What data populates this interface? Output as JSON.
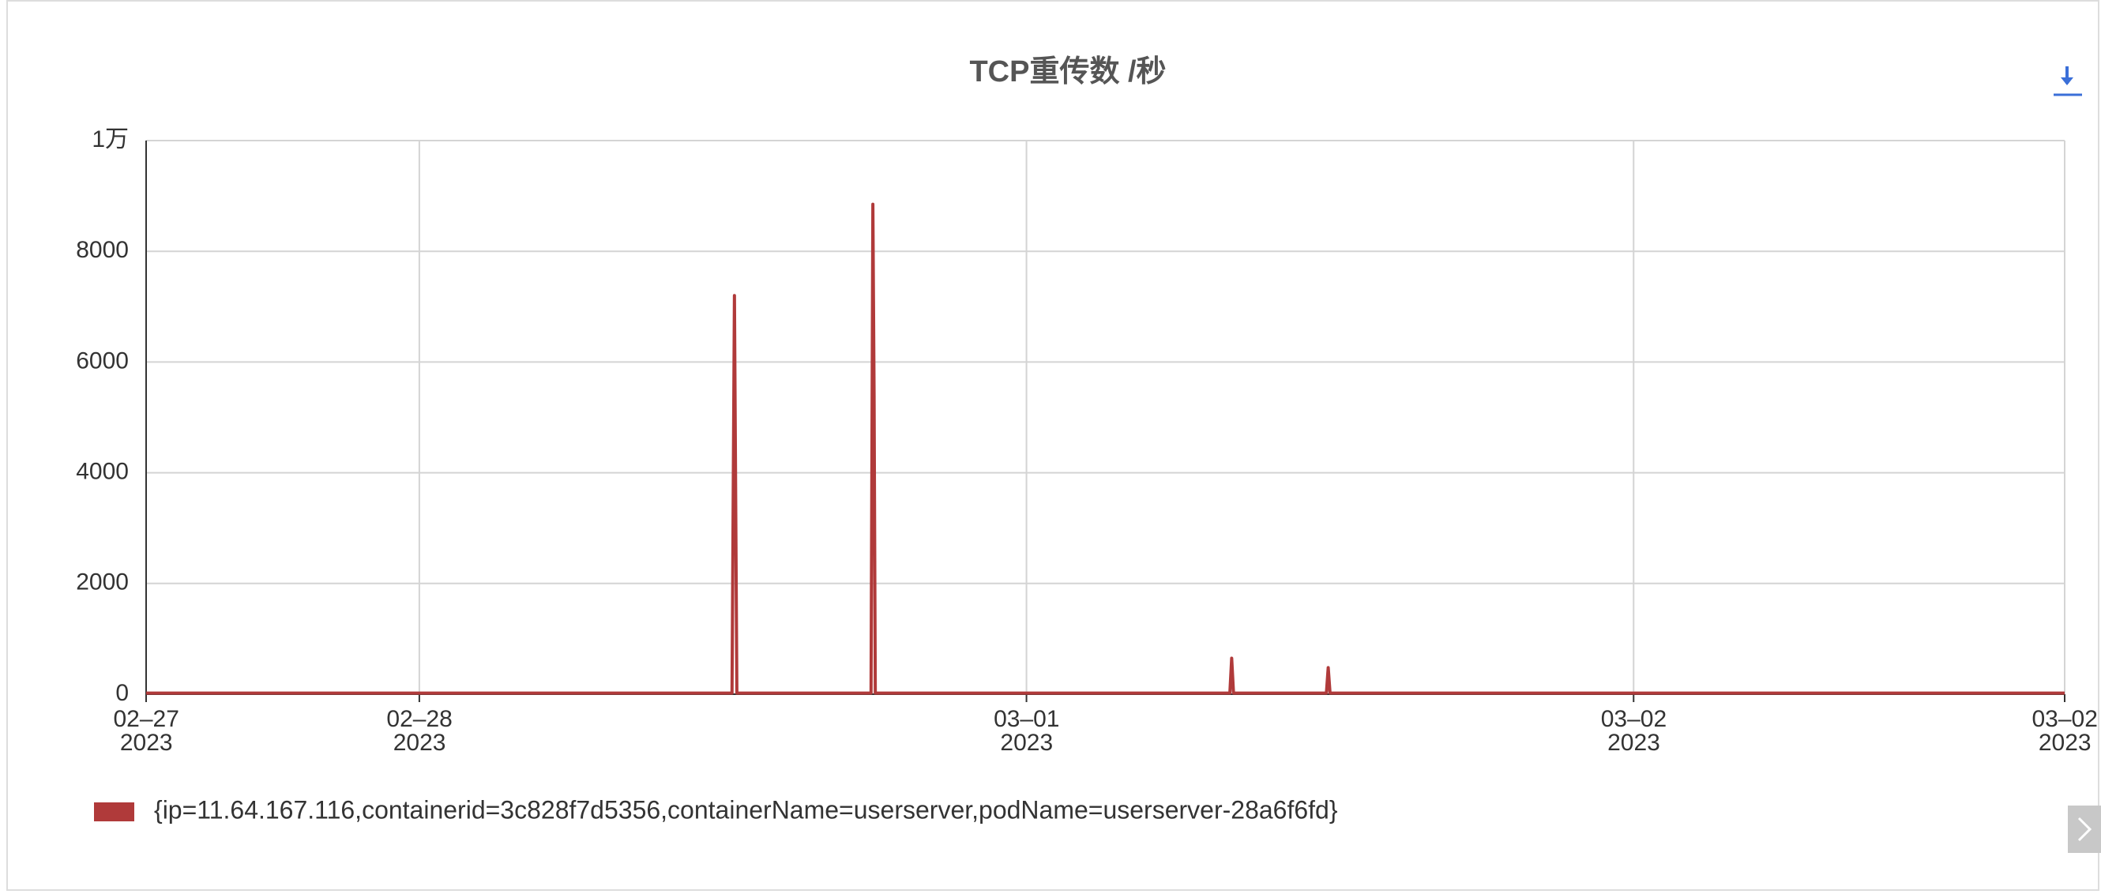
{
  "chart_data": {
    "type": "line",
    "title": "TCP重传数 /秒",
    "x": [
      0.55,
      1.5,
      1.515,
      1.519,
      1.523,
      1.74,
      1.744,
      1.747,
      1.749,
      1.751,
      1.755,
      2.33,
      2.335,
      2.338,
      2.341,
      2.49,
      2.494,
      2.497,
      2.5,
      3.71
    ],
    "series": [
      {
        "name": "{ip=11.64.167.116,containerid=3c828f7d5356,containerName=userserver,podName=userserver-28a6f6fd}",
        "color": "#b03a3a",
        "values": [
          20,
          20,
          20,
          7200,
          20,
          20,
          20,
          8850,
          5400,
          20,
          20,
          20,
          20,
          650,
          20,
          20,
          20,
          480,
          20,
          20
        ]
      }
    ],
    "xlim": [
      0.55,
      3.71
    ],
    "xticks": [
      {
        "value": 0.55,
        "label": "02–27\n2023"
      },
      {
        "value": 1,
        "label": "02–28\n2023"
      },
      {
        "value": 2,
        "label": "03–01\n2023"
      },
      {
        "value": 3,
        "label": "03–02\n2023"
      },
      {
        "value": 3.71,
        "label": "03–02\n2023"
      }
    ],
    "ylim": [
      0,
      10000
    ],
    "yticks": [
      0,
      2000,
      4000,
      6000,
      8000,
      {
        "value": 10000,
        "label": "1万"
      }
    ],
    "grid": true
  }
}
